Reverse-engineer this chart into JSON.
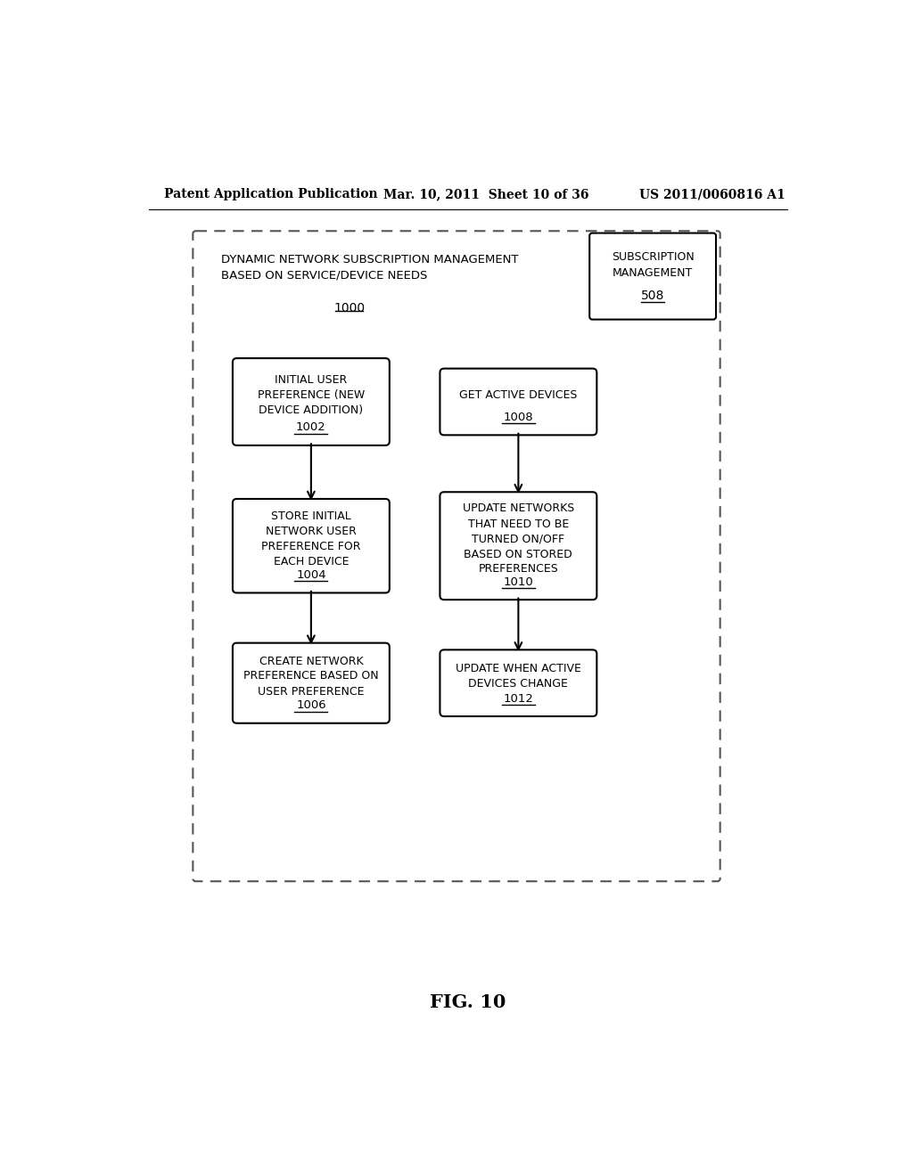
{
  "header_left": "Patent Application Publication",
  "header_mid": "Mar. 10, 2011  Sheet 10 of 36",
  "header_right": "US 2011/0060816 A1",
  "figure_label": "FIG. 10",
  "outer_box_label": "DYNAMIC NETWORK SUBSCRIPTION MANAGEMENT\nBASED ON SERVICE/DEVICE NEEDS",
  "outer_box_number": "1000",
  "sub_box_label": "SUBSCRIPTION\nMANAGEMENT",
  "sub_box_number": "508",
  "background_color": "#ffffff",
  "text_color": "#000000",
  "arrow_color": "#000000"
}
